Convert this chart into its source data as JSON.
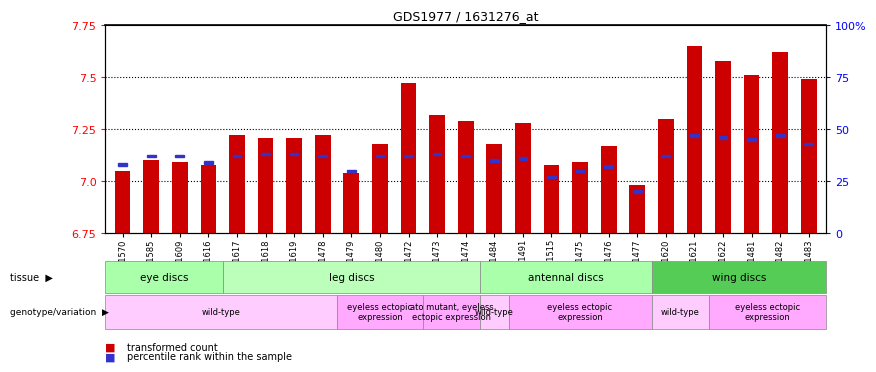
{
  "title": "GDS1977 / 1631276_at",
  "samples": [
    "GSM91570",
    "GSM91585",
    "GSM91609",
    "GSM91616",
    "GSM91617",
    "GSM91618",
    "GSM91619",
    "GSM91478",
    "GSM91479",
    "GSM91480",
    "GSM91472",
    "GSM91473",
    "GSM91474",
    "GSM91484",
    "GSM91491",
    "GSM91515",
    "GSM91475",
    "GSM91476",
    "GSM91477",
    "GSM91620",
    "GSM91621",
    "GSM91622",
    "GSM91481",
    "GSM91482",
    "GSM91483"
  ],
  "transformed_count": [
    7.05,
    7.1,
    7.09,
    7.08,
    7.22,
    7.21,
    7.21,
    7.22,
    7.04,
    7.18,
    7.47,
    7.32,
    7.29,
    7.18,
    7.28,
    7.08,
    7.09,
    7.17,
    6.98,
    7.3,
    7.65,
    7.58,
    7.51,
    7.62,
    7.49
  ],
  "percentile_rank": [
    33,
    37,
    37,
    34,
    37,
    38,
    38,
    37,
    30,
    37,
    37,
    38,
    37,
    35,
    36,
    27,
    30,
    32,
    20,
    37,
    47,
    46,
    45,
    47,
    43
  ],
  "ylim_left": [
    6.75,
    7.75
  ],
  "ylim_right": [
    0,
    100
  ],
  "yticks_left": [
    6.75,
    7.0,
    7.25,
    7.5,
    7.75
  ],
  "yticks_right": [
    0,
    25,
    50,
    75,
    100
  ],
  "bar_color": "#cc0000",
  "percentile_color": "#3333cc",
  "tissue_groups": [
    {
      "label": "eye discs",
      "start": 0,
      "end": 4,
      "color": "#aaffaa"
    },
    {
      "label": "leg discs",
      "start": 4,
      "end": 13,
      "color": "#bbffbb"
    },
    {
      "label": "antennal discs",
      "start": 13,
      "end": 19,
      "color": "#aaffaa"
    },
    {
      "label": "wing discs",
      "start": 19,
      "end": 25,
      "color": "#55cc55"
    }
  ],
  "genotype_groups": [
    {
      "label": "wild-type",
      "start": 0,
      "end": 8,
      "color": "#ffccff"
    },
    {
      "label": "eyeless ectopic\nexpression",
      "start": 8,
      "end": 11,
      "color": "#ffaaff"
    },
    {
      "label": "ato mutant, eyeless\nectopic expression",
      "start": 11,
      "end": 13,
      "color": "#ffaaff"
    },
    {
      "label": "wild-type",
      "start": 13,
      "end": 14,
      "color": "#ffccff"
    },
    {
      "label": "eyeless ectopic\nexpression",
      "start": 14,
      "end": 19,
      "color": "#ffaaff"
    },
    {
      "label": "wild-type",
      "start": 19,
      "end": 21,
      "color": "#ffccff"
    },
    {
      "label": "eyeless ectopic\nexpression",
      "start": 21,
      "end": 25,
      "color": "#ffaaff"
    }
  ],
  "hgrid_at": [
    7.0,
    7.25,
    7.5
  ],
  "bar_width": 0.55
}
